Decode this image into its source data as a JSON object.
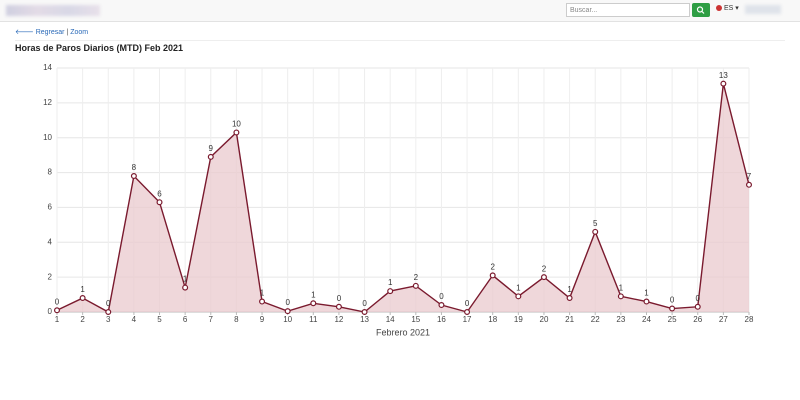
{
  "nav": {
    "search_placeholder": "Buscar...",
    "language": "ES"
  },
  "links": {
    "back": "Regresar",
    "separator": "|",
    "zoom": "Zoom"
  },
  "chart_data": {
    "type": "area-line",
    "title": "Horas de Paros Diarios (MTD) Feb 2021",
    "x_label": "Febrero 2021",
    "x": [
      1,
      2,
      3,
      4,
      5,
      6,
      7,
      8,
      9,
      10,
      11,
      12,
      13,
      14,
      15,
      16,
      17,
      18,
      19,
      20,
      21,
      22,
      23,
      24,
      25,
      26,
      27,
      28
    ],
    "xlim": [
      1,
      28
    ],
    "xticks": [
      1,
      2,
      3,
      4,
      5,
      6,
      7,
      8,
      9,
      10,
      11,
      12,
      13,
      14,
      15,
      16,
      17,
      18,
      19,
      20,
      21,
      22,
      23,
      24,
      25,
      26,
      27,
      28
    ],
    "ylim": [
      0,
      14
    ],
    "yticks": [
      0,
      2,
      4,
      6,
      8,
      10,
      12,
      14
    ],
    "grid": true,
    "series": [
      {
        "color": "#7a1a2e",
        "fill": "#e9c9cd",
        "values": [
          0.1,
          0.8,
          0,
          7.8,
          6.3,
          1.4,
          8.9,
          10.3,
          0.6,
          0.05,
          0.5,
          0.3,
          0,
          1.2,
          1.5,
          0.4,
          0,
          2.1,
          0.9,
          2.0,
          0.8,
          4.6,
          0.9,
          0.6,
          0.2,
          0.3,
          13.1,
          7.3
        ],
        "value_labels": [
          "0",
          "1",
          "0",
          "8",
          "6",
          "1",
          "9",
          "10",
          "1",
          "0",
          "1",
          "0",
          "0",
          "1",
          "2",
          "0",
          "0",
          "2",
          "1",
          "2",
          "1",
          "5",
          "1",
          "1",
          "0",
          "0",
          "13",
          "7"
        ]
      }
    ]
  }
}
